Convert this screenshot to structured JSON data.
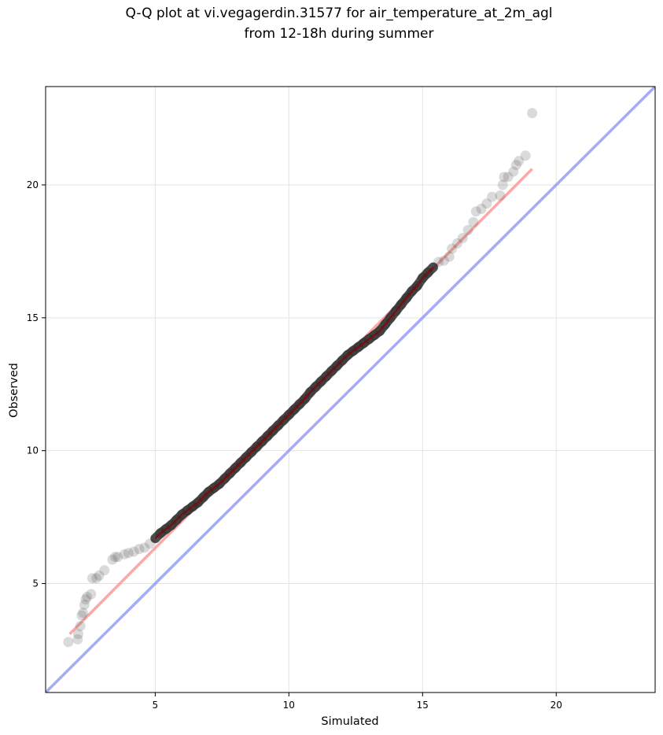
{
  "chart_data": {
    "type": "scatter",
    "title_line1": "Q-Q plot at vi.vegagerdin.31577 for air_temperature_at_2m_agl",
    "title_line2": "from 12-18h during summer",
    "xlabel": "Simulated",
    "ylabel": "Observed",
    "xlim": [
      0.9,
      23.7
    ],
    "ylim": [
      0.9,
      23.7
    ],
    "xticks": [
      5,
      10,
      15,
      20
    ],
    "yticks": [
      5,
      10,
      15,
      20
    ],
    "grid": true,
    "colors": {
      "points": "#555555",
      "fit_line": "#ff8a8a",
      "identity_line": "#8f96f2",
      "grid": "#e3e3e3"
    },
    "fit_line": {
      "x": [
        1.8,
        19.1
      ],
      "y": [
        3.1,
        20.6
      ]
    },
    "identity_line": {
      "x": [
        0.9,
        23.7
      ],
      "y": [
        0.9,
        23.7
      ]
    },
    "points": [
      [
        1.75,
        2.8
      ],
      [
        2.1,
        2.9
      ],
      [
        2.12,
        3.1
      ],
      [
        2.2,
        3.4
      ],
      [
        2.25,
        3.8
      ],
      [
        2.3,
        3.9
      ],
      [
        2.35,
        4.2
      ],
      [
        2.4,
        4.4
      ],
      [
        2.45,
        4.5
      ],
      [
        2.6,
        4.6
      ],
      [
        2.65,
        5.2
      ],
      [
        2.8,
        5.2
      ],
      [
        2.9,
        5.3
      ],
      [
        3.1,
        5.5
      ],
      [
        3.4,
        5.9
      ],
      [
        3.5,
        6.0
      ],
      [
        3.6,
        6.0
      ],
      [
        3.85,
        6.1
      ],
      [
        4.0,
        6.15
      ],
      [
        4.2,
        6.2
      ],
      [
        4.4,
        6.3
      ],
      [
        4.6,
        6.35
      ],
      [
        4.8,
        6.5
      ],
      [
        5.0,
        6.7
      ],
      [
        5.2,
        6.9
      ],
      [
        5.4,
        7.05
      ],
      [
        5.6,
        7.2
      ],
      [
        5.8,
        7.4
      ],
      [
        6.0,
        7.6
      ],
      [
        6.2,
        7.75
      ],
      [
        6.4,
        7.9
      ],
      [
        6.6,
        8.05
      ],
      [
        6.8,
        8.25
      ],
      [
        7.0,
        8.45
      ],
      [
        7.2,
        8.6
      ],
      [
        7.4,
        8.75
      ],
      [
        7.6,
        8.95
      ],
      [
        7.8,
        9.15
      ],
      [
        8.0,
        9.35
      ],
      [
        8.2,
        9.55
      ],
      [
        8.4,
        9.75
      ],
      [
        8.6,
        9.95
      ],
      [
        8.8,
        10.15
      ],
      [
        9.0,
        10.35
      ],
      [
        9.2,
        10.55
      ],
      [
        9.4,
        10.75
      ],
      [
        9.6,
        10.95
      ],
      [
        9.8,
        11.15
      ],
      [
        10.0,
        11.35
      ],
      [
        10.2,
        11.55
      ],
      [
        10.4,
        11.75
      ],
      [
        10.6,
        11.95
      ],
      [
        10.8,
        12.2
      ],
      [
        11.0,
        12.4
      ],
      [
        11.2,
        12.6
      ],
      [
        11.4,
        12.8
      ],
      [
        11.6,
        13.0
      ],
      [
        11.8,
        13.2
      ],
      [
        12.0,
        13.4
      ],
      [
        12.2,
        13.6
      ],
      [
        12.4,
        13.75
      ],
      [
        12.6,
        13.9
      ],
      [
        12.8,
        14.05
      ],
      [
        13.0,
        14.2
      ],
      [
        13.2,
        14.35
      ],
      [
        13.4,
        14.5
      ],
      [
        13.6,
        14.75
      ],
      [
        13.8,
        15.0
      ],
      [
        14.0,
        15.25
      ],
      [
        14.2,
        15.5
      ],
      [
        14.4,
        15.75
      ],
      [
        14.6,
        16.0
      ],
      [
        14.8,
        16.2
      ],
      [
        15.0,
        16.5
      ],
      [
        15.2,
        16.7
      ],
      [
        15.4,
        16.9
      ],
      [
        15.6,
        17.1
      ],
      [
        15.8,
        17.15
      ],
      [
        16.0,
        17.3
      ],
      [
        16.1,
        17.6
      ],
      [
        16.3,
        17.8
      ],
      [
        16.5,
        18.0
      ],
      [
        16.7,
        18.3
      ],
      [
        16.9,
        18.6
      ],
      [
        17.0,
        19.0
      ],
      [
        17.2,
        19.1
      ],
      [
        17.4,
        19.3
      ],
      [
        17.6,
        19.55
      ],
      [
        17.9,
        19.6
      ],
      [
        18.0,
        20.0
      ],
      [
        18.05,
        20.3
      ],
      [
        18.2,
        20.3
      ],
      [
        18.4,
        20.5
      ],
      [
        18.5,
        20.75
      ],
      [
        18.6,
        20.9
      ],
      [
        18.85,
        21.1
      ],
      [
        19.1,
        22.7
      ]
    ]
  }
}
